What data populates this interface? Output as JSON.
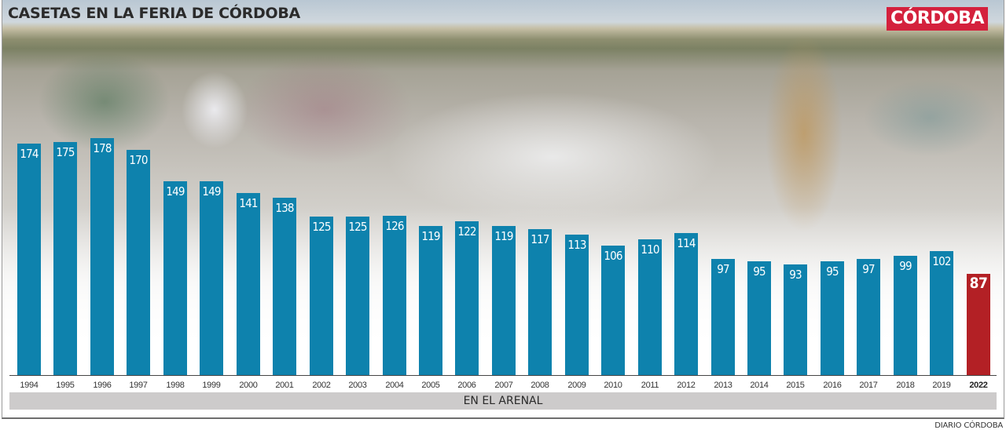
{
  "header": {
    "title": "CASETAS EN LA FERIA DE CÓRDOBA",
    "logo": "CÓRDOBA"
  },
  "colors": {
    "bar": "#0e82ad",
    "highlight_bar": "#b32025",
    "logo_bg": "#d4213d",
    "band": "#cdcbcb"
  },
  "chart_data": {
    "type": "bar",
    "title": "CASETAS EN LA FERIA DE CÓRDOBA",
    "xlabel": "EN EL ARENAL",
    "ylabel": "",
    "categories": [
      "1994",
      "1995",
      "1996",
      "1997",
      "1998",
      "1999",
      "2000",
      "2001",
      "2002",
      "2003",
      "2004",
      "2005",
      "2006",
      "2007",
      "2008",
      "2009",
      "2010",
      "2011",
      "2012",
      "2013",
      "2014",
      "2015",
      "2016",
      "2017",
      "2018",
      "2019",
      "2022"
    ],
    "values": [
      174,
      175,
      178,
      170,
      149,
      149,
      141,
      138,
      125,
      125,
      126,
      119,
      122,
      119,
      117,
      113,
      106,
      110,
      114,
      97,
      95,
      93,
      95,
      97,
      99,
      102,
      87
    ],
    "highlight": {
      "category": "2022",
      "value": 87,
      "color": "#b32025"
    },
    "data_labels": true,
    "grid": false,
    "legend": null,
    "source": "DIARIO CÓRDOBA"
  },
  "axis": {
    "band_label": "EN EL ARENAL"
  },
  "footer": {
    "credit": "DIARIO CÓRDOBA"
  }
}
